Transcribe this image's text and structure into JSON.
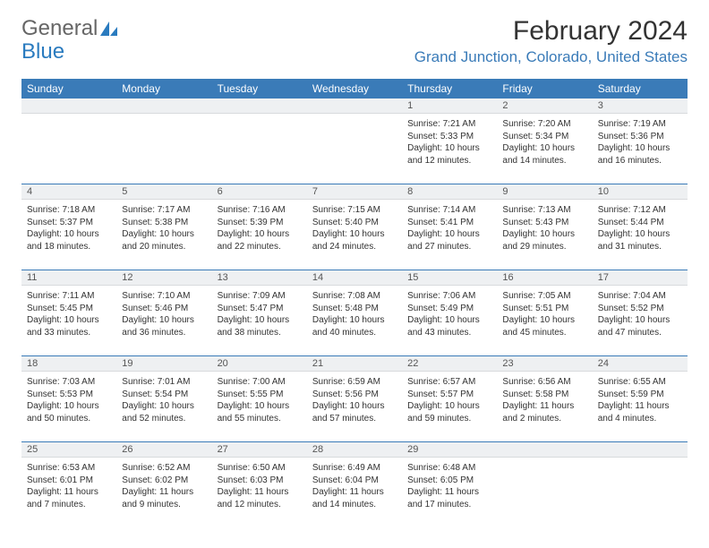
{
  "logo": {
    "text1": "General",
    "text2": "Blue"
  },
  "title": "February 2024",
  "location": "Grand Junction, Colorado, United States",
  "colors": {
    "header_bg": "#3a7bb8",
    "header_text": "#ffffff",
    "location_text": "#3a7bb8",
    "daynum_bg": "#eef0f2",
    "body_text": "#333333",
    "page_bg": "#ffffff",
    "border": "#3a7bb8"
  },
  "typography": {
    "title_fontsize": 30,
    "location_fontsize": 17,
    "dayheader_fontsize": 12,
    "daynum_fontsize": 11,
    "cell_fontsize": 10
  },
  "dayNames": [
    "Sunday",
    "Monday",
    "Tuesday",
    "Wednesday",
    "Thursday",
    "Friday",
    "Saturday"
  ],
  "weeks": [
    [
      {
        "num": "",
        "lines": []
      },
      {
        "num": "",
        "lines": []
      },
      {
        "num": "",
        "lines": []
      },
      {
        "num": "",
        "lines": []
      },
      {
        "num": "1",
        "lines": [
          "Sunrise: 7:21 AM",
          "Sunset: 5:33 PM",
          "Daylight: 10 hours and 12 minutes."
        ]
      },
      {
        "num": "2",
        "lines": [
          "Sunrise: 7:20 AM",
          "Sunset: 5:34 PM",
          "Daylight: 10 hours and 14 minutes."
        ]
      },
      {
        "num": "3",
        "lines": [
          "Sunrise: 7:19 AM",
          "Sunset: 5:36 PM",
          "Daylight: 10 hours and 16 minutes."
        ]
      }
    ],
    [
      {
        "num": "4",
        "lines": [
          "Sunrise: 7:18 AM",
          "Sunset: 5:37 PM",
          "Daylight: 10 hours and 18 minutes."
        ]
      },
      {
        "num": "5",
        "lines": [
          "Sunrise: 7:17 AM",
          "Sunset: 5:38 PM",
          "Daylight: 10 hours and 20 minutes."
        ]
      },
      {
        "num": "6",
        "lines": [
          "Sunrise: 7:16 AM",
          "Sunset: 5:39 PM",
          "Daylight: 10 hours and 22 minutes."
        ]
      },
      {
        "num": "7",
        "lines": [
          "Sunrise: 7:15 AM",
          "Sunset: 5:40 PM",
          "Daylight: 10 hours and 24 minutes."
        ]
      },
      {
        "num": "8",
        "lines": [
          "Sunrise: 7:14 AM",
          "Sunset: 5:41 PM",
          "Daylight: 10 hours and 27 minutes."
        ]
      },
      {
        "num": "9",
        "lines": [
          "Sunrise: 7:13 AM",
          "Sunset: 5:43 PM",
          "Daylight: 10 hours and 29 minutes."
        ]
      },
      {
        "num": "10",
        "lines": [
          "Sunrise: 7:12 AM",
          "Sunset: 5:44 PM",
          "Daylight: 10 hours and 31 minutes."
        ]
      }
    ],
    [
      {
        "num": "11",
        "lines": [
          "Sunrise: 7:11 AM",
          "Sunset: 5:45 PM",
          "Daylight: 10 hours and 33 minutes."
        ]
      },
      {
        "num": "12",
        "lines": [
          "Sunrise: 7:10 AM",
          "Sunset: 5:46 PM",
          "Daylight: 10 hours and 36 minutes."
        ]
      },
      {
        "num": "13",
        "lines": [
          "Sunrise: 7:09 AM",
          "Sunset: 5:47 PM",
          "Daylight: 10 hours and 38 minutes."
        ]
      },
      {
        "num": "14",
        "lines": [
          "Sunrise: 7:08 AM",
          "Sunset: 5:48 PM",
          "Daylight: 10 hours and 40 minutes."
        ]
      },
      {
        "num": "15",
        "lines": [
          "Sunrise: 7:06 AM",
          "Sunset: 5:49 PM",
          "Daylight: 10 hours and 43 minutes."
        ]
      },
      {
        "num": "16",
        "lines": [
          "Sunrise: 7:05 AM",
          "Sunset: 5:51 PM",
          "Daylight: 10 hours and 45 minutes."
        ]
      },
      {
        "num": "17",
        "lines": [
          "Sunrise: 7:04 AM",
          "Sunset: 5:52 PM",
          "Daylight: 10 hours and 47 minutes."
        ]
      }
    ],
    [
      {
        "num": "18",
        "lines": [
          "Sunrise: 7:03 AM",
          "Sunset: 5:53 PM",
          "Daylight: 10 hours and 50 minutes."
        ]
      },
      {
        "num": "19",
        "lines": [
          "Sunrise: 7:01 AM",
          "Sunset: 5:54 PM",
          "Daylight: 10 hours and 52 minutes."
        ]
      },
      {
        "num": "20",
        "lines": [
          "Sunrise: 7:00 AM",
          "Sunset: 5:55 PM",
          "Daylight: 10 hours and 55 minutes."
        ]
      },
      {
        "num": "21",
        "lines": [
          "Sunrise: 6:59 AM",
          "Sunset: 5:56 PM",
          "Daylight: 10 hours and 57 minutes."
        ]
      },
      {
        "num": "22",
        "lines": [
          "Sunrise: 6:57 AM",
          "Sunset: 5:57 PM",
          "Daylight: 10 hours and 59 minutes."
        ]
      },
      {
        "num": "23",
        "lines": [
          "Sunrise: 6:56 AM",
          "Sunset: 5:58 PM",
          "Daylight: 11 hours and 2 minutes."
        ]
      },
      {
        "num": "24",
        "lines": [
          "Sunrise: 6:55 AM",
          "Sunset: 5:59 PM",
          "Daylight: 11 hours and 4 minutes."
        ]
      }
    ],
    [
      {
        "num": "25",
        "lines": [
          "Sunrise: 6:53 AM",
          "Sunset: 6:01 PM",
          "Daylight: 11 hours and 7 minutes."
        ]
      },
      {
        "num": "26",
        "lines": [
          "Sunrise: 6:52 AM",
          "Sunset: 6:02 PM",
          "Daylight: 11 hours and 9 minutes."
        ]
      },
      {
        "num": "27",
        "lines": [
          "Sunrise: 6:50 AM",
          "Sunset: 6:03 PM",
          "Daylight: 11 hours and 12 minutes."
        ]
      },
      {
        "num": "28",
        "lines": [
          "Sunrise: 6:49 AM",
          "Sunset: 6:04 PM",
          "Daylight: 11 hours and 14 minutes."
        ]
      },
      {
        "num": "29",
        "lines": [
          "Sunrise: 6:48 AM",
          "Sunset: 6:05 PM",
          "Daylight: 11 hours and 17 minutes."
        ]
      },
      {
        "num": "",
        "lines": []
      },
      {
        "num": "",
        "lines": []
      }
    ]
  ]
}
